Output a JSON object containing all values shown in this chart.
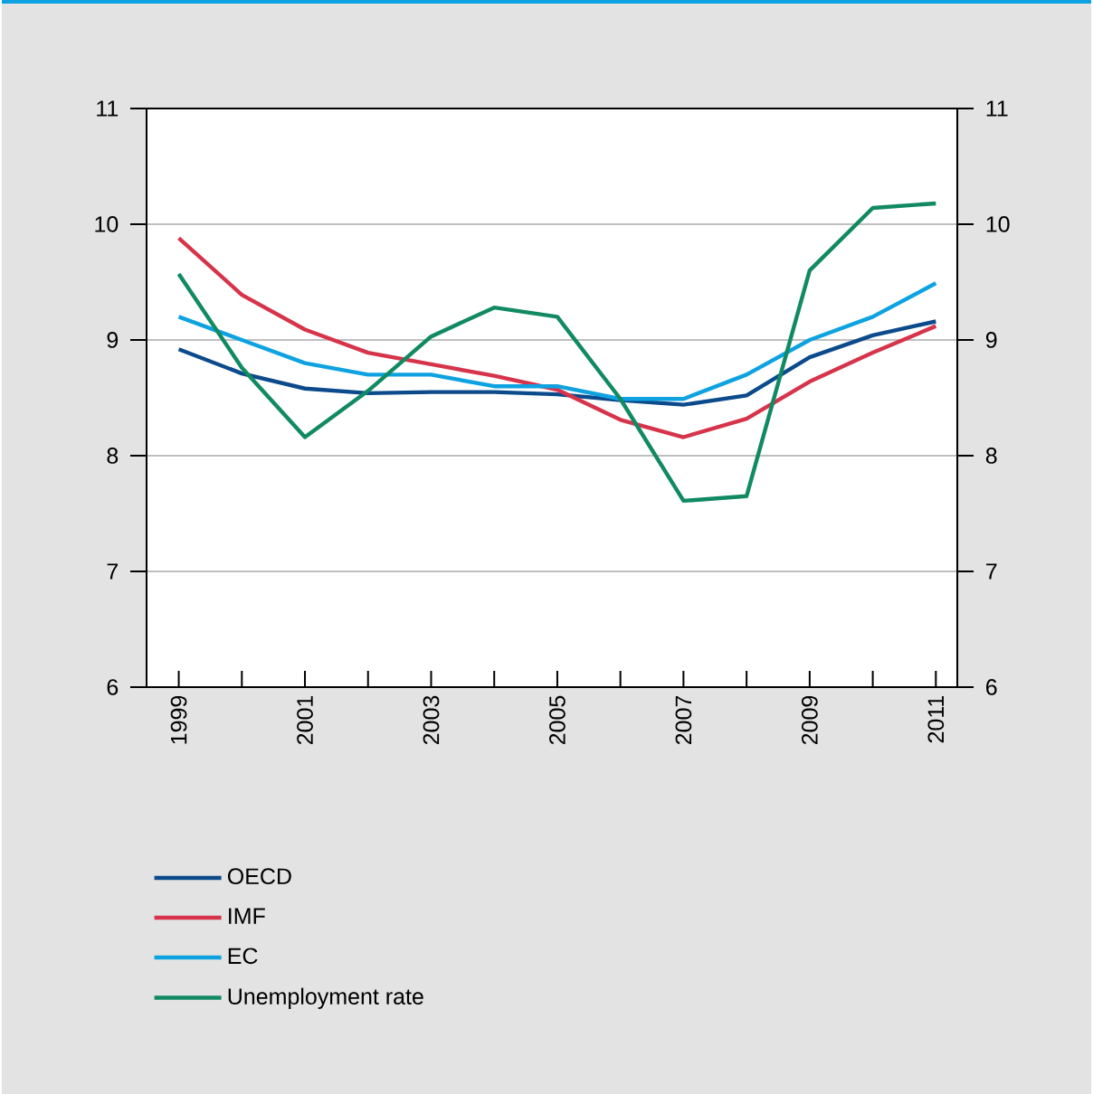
{
  "chart_data": {
    "type": "line",
    "categories": [
      "1999",
      null,
      "2001",
      null,
      "2003",
      null,
      "2005",
      null,
      "2007",
      null,
      "2009",
      null,
      "2011"
    ],
    "series": [
      {
        "name": "OECD",
        "color": "#0b4a8b",
        "values": [
          8.92,
          8.71,
          8.58,
          8.54,
          8.55,
          8.55,
          8.53,
          8.48,
          8.44,
          8.52,
          8.85,
          9.04,
          9.16
        ]
      },
      {
        "name": "IMF",
        "color": "#d6344a",
        "values": [
          9.88,
          9.39,
          9.09,
          8.89,
          8.79,
          8.69,
          8.57,
          8.31,
          8.16,
          8.32,
          8.64,
          8.89,
          9.12
        ]
      },
      {
        "name": "EC",
        "color": "#0ea2e0",
        "values": [
          9.2,
          9.0,
          8.8,
          8.7,
          8.7,
          8.6,
          8.6,
          8.49,
          8.49,
          8.7,
          9.0,
          9.2,
          9.49
        ]
      },
      {
        "name": "Unemployment rate",
        "color": "#118a63",
        "values": [
          9.57,
          8.76,
          8.16,
          8.56,
          9.03,
          9.28,
          9.2,
          8.49,
          7.61,
          7.65,
          9.6,
          10.14,
          10.18
        ]
      }
    ],
    "ylim": [
      6,
      11
    ],
    "yticks": [
      6,
      7,
      8,
      9,
      10,
      11
    ],
    "y2lim": [
      6,
      11
    ],
    "y2ticks": [
      6,
      7,
      8,
      9,
      10,
      11
    ],
    "grid": "y",
    "legend": "bottom",
    "line_style": "solid",
    "marker": "none"
  }
}
